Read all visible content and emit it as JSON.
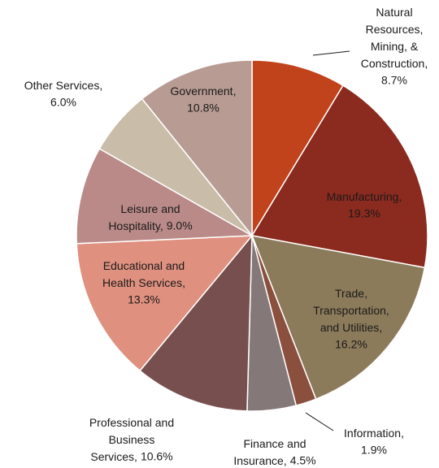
{
  "chart_data": {
    "type": "pie",
    "categories": [
      "Natural Resources, Mining, & Construction,",
      "Manufacturing,",
      "Trade, Transportation, and Utilities,",
      "Information,",
      "Finance and Insurance,",
      "Professional and Business Services,",
      "Educational and Health Services,",
      "Leisure and Hospitality,",
      "Other Services,",
      "Government,"
    ],
    "values": [
      8.7,
      19.3,
      16.2,
      1.9,
      4.5,
      10.6,
      13.3,
      9.0,
      6.0,
      10.8
    ],
    "value_labels": [
      "8.7%",
      "19.3%",
      "16.2%",
      "1.9%",
      "4.5%",
      "10.6%",
      "13.3%",
      "9.0%",
      "6.0%",
      "10.8%"
    ],
    "colors": [
      "#c1431b",
      "#8b2a1f",
      "#8c7b5b",
      "#8b4f3e",
      "#857878",
      "#784f4f",
      "#df907f",
      "#b98a88",
      "#c9bda9",
      "#b89b93"
    ]
  }
}
